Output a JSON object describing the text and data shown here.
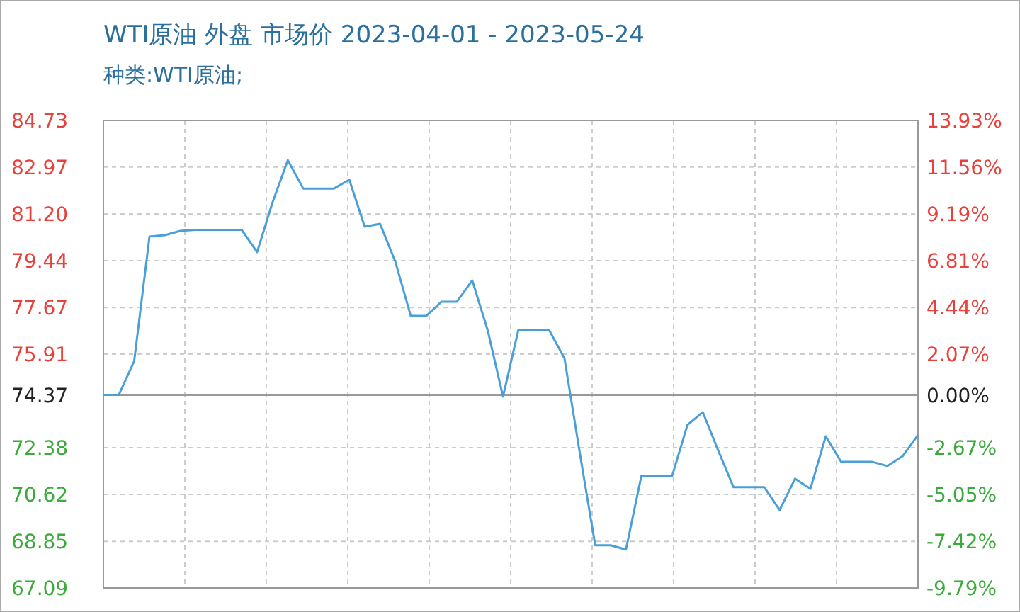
{
  "chart_data": {
    "type": "line",
    "title": "WTI原油 外盘 市场价 2023-04-01 - 2023-05-24",
    "subtitle": "种类:WTI原油;",
    "categories": [
      null,
      null,
      null,
      null,
      null,
      null,
      null,
      null,
      null,
      null,
      null,
      null,
      null,
      null,
      null,
      null,
      null,
      null,
      null,
      null,
      null,
      null,
      null,
      null,
      null,
      null,
      null,
      null,
      null,
      null,
      null,
      null,
      null,
      null,
      null,
      null,
      null,
      null,
      null,
      null,
      null,
      null,
      null,
      null,
      null,
      null,
      null,
      null,
      null,
      null,
      null,
      null,
      null,
      null
    ],
    "series": [
      {
        "color": "#4a9fd8",
        "values": [
          74.37,
          74.37,
          75.64,
          80.35,
          80.4,
          80.56,
          80.6,
          80.6,
          80.6,
          80.6,
          79.76,
          81.63,
          83.23,
          82.16,
          82.16,
          82.16,
          82.49,
          80.72,
          80.83,
          79.39,
          77.35,
          77.35,
          77.89,
          77.89,
          78.69,
          76.82,
          74.31,
          76.82,
          76.82,
          76.82,
          75.75,
          72.17,
          68.7,
          68.7,
          68.54,
          71.31,
          71.31,
          71.31,
          73.24,
          73.72,
          72.28,
          70.89,
          70.89,
          70.89,
          70.03,
          71.21,
          70.83,
          72.81,
          71.85,
          71.85,
          71.85,
          71.69,
          72.06,
          72.86
        ]
      }
    ],
    "ylim": [
      67.09,
      84.73
    ],
    "yticks": [
      84.73,
      82.97,
      {
        "value": 81.2,
        "label": "81.20"
      },
      79.44,
      77.67,
      75.91,
      74.37,
      72.38,
      70.62,
      68.85,
      67.09
    ],
    "y2lim": [
      -9.79,
      13.93
    ],
    "y2ticks": [
      {
        "value": 13.93,
        "label": "13.93%"
      },
      {
        "value": 11.56,
        "label": "11.56%"
      },
      {
        "value": 9.19,
        "label": "9.19%"
      },
      {
        "value": 6.81,
        "label": "6.81%"
      },
      {
        "value": 4.44,
        "label": "4.44%"
      },
      {
        "value": 2.07,
        "label": "2.07%"
      },
      {
        "value": 0,
        "label": "0.00%"
      },
      {
        "value": -2.67,
        "label": "-2.67%"
      },
      {
        "value": -5.05,
        "label": "-5.05%"
      },
      {
        "value": -7.42,
        "label": "-7.42%"
      },
      {
        "value": -9.79,
        "label": "-9.79%"
      }
    ],
    "ref_lines": [
      {
        "axis": "y",
        "value": 74.37,
        "color": "#999999"
      }
    ],
    "grid": true,
    "marker": "none",
    "line_style": "solid"
  }
}
